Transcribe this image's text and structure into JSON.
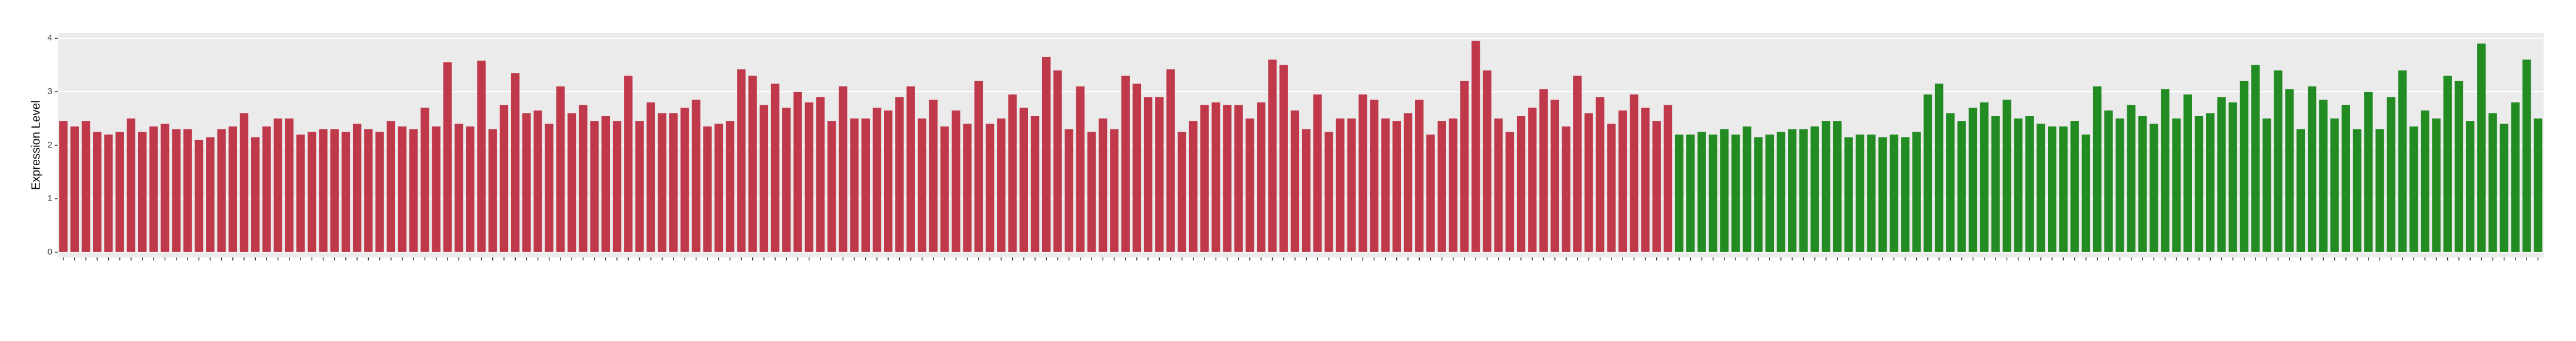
{
  "chart_data": {
    "type": "bar",
    "y_label": "Expression Level",
    "categories": [
      null,
      null,
      null,
      null,
      null,
      null,
      null,
      null,
      null,
      null,
      null,
      null,
      null,
      null,
      null,
      null,
      null,
      null,
      null,
      null,
      null,
      null,
      null,
      null,
      null,
      null,
      null,
      null,
      null,
      null,
      null,
      null,
      null,
      null,
      null,
      null,
      null,
      null,
      null,
      null,
      null,
      null,
      null,
      null,
      null,
      null,
      null,
      null,
      null,
      null,
      null,
      null,
      null,
      null,
      null,
      null,
      null,
      null,
      null,
      null,
      null,
      null,
      null,
      null,
      null,
      null,
      null,
      null,
      null,
      null,
      null,
      null,
      null,
      null,
      null,
      null,
      null,
      null,
      null,
      null,
      null,
      null,
      null,
      null,
      null,
      null,
      null,
      null,
      null,
      null,
      null,
      null,
      null,
      null,
      null,
      null,
      null,
      null,
      null,
      null,
      null,
      null,
      null,
      null,
      null,
      null,
      null,
      null,
      null,
      null,
      null,
      null,
      null,
      null,
      null,
      null,
      null,
      null,
      null,
      null,
      null,
      null,
      null,
      null,
      null,
      null,
      null,
      null,
      null,
      null,
      null,
      null,
      null,
      null,
      null,
      null,
      null,
      null,
      null,
      null,
      null,
      null,
      null,
      null,
      null,
      null,
      null,
      null,
      null,
      null,
      null,
      null,
      null,
      null,
      null,
      null,
      null,
      null,
      null,
      null,
      null,
      null,
      null,
      null,
      null,
      null,
      null,
      null,
      null,
      null,
      null,
      null,
      null,
      null,
      null,
      null,
      null,
      null,
      null,
      null,
      null,
      null,
      null,
      null,
      null,
      null,
      null,
      null,
      null,
      null,
      null,
      null,
      null,
      null,
      null,
      null,
      null,
      null,
      null,
      null,
      null,
      null,
      null,
      null,
      null,
      null,
      null,
      null,
      null,
      null,
      null,
      null,
      null,
      null,
      null,
      null,
      null,
      null,
      null,
      null
    ],
    "series": [
      {
        "color": "#c0394b",
        "values": [
          2.45,
          2.35,
          2.45,
          2.25,
          2.2,
          2.25,
          2.5,
          2.25,
          2.35,
          2.4,
          2.3,
          2.3,
          2.1,
          2.15,
          2.3,
          2.35,
          2.6,
          2.15,
          2.35,
          2.5,
          2.5,
          2.2,
          2.25,
          2.3,
          2.3,
          2.25,
          2.4,
          2.3,
          2.25,
          2.45,
          2.35,
          2.3,
          2.7,
          2.35,
          3.55,
          2.4,
          2.35,
          3.58,
          2.3,
          2.75,
          3.35,
          2.6,
          2.65,
          2.4,
          3.1,
          2.6,
          2.75,
          2.45,
          2.55,
          2.45,
          3.3,
          2.45,
          2.8,
          2.6,
          2.6,
          2.7,
          2.85,
          2.35,
          2.4,
          2.45,
          3.42,
          3.3,
          2.75,
          3.15,
          2.7,
          3.0,
          2.8,
          2.9,
          2.45,
          3.1,
          2.5,
          2.5,
          2.7,
          2.65,
          2.9,
          3.1,
          2.5,
          2.85,
          2.35,
          2.65,
          2.4,
          3.2,
          2.4,
          2.5,
          2.95,
          2.7,
          2.55,
          3.65,
          3.4,
          2.3,
          3.1,
          2.25,
          2.5,
          2.3,
          3.3,
          3.15,
          2.9,
          2.9,
          3.42,
          2.25,
          2.45,
          2.75,
          2.8,
          2.75,
          2.75,
          2.5,
          2.8,
          3.6,
          3.5,
          2.65,
          2.3,
          2.95,
          2.25,
          2.5,
          2.5,
          2.95,
          2.85,
          2.5,
          2.45,
          2.6,
          2.85,
          2.2,
          2.45,
          2.5,
          3.2,
          3.95,
          3.4,
          2.5,
          2.25,
          2.55,
          2.7,
          3.05,
          2.85,
          2.35,
          3.3,
          2.6,
          2.9,
          2.4,
          2.65,
          2.95,
          2.7,
          2.45,
          2.75,
          null,
          null,
          null,
          null,
          null,
          null,
          null,
          null,
          null,
          null,
          null,
          null,
          null,
          null,
          null,
          null,
          null,
          null,
          null,
          null,
          null,
          null,
          null,
          null,
          null,
          null,
          null,
          null,
          null,
          null,
          null,
          null,
          null,
          null,
          null,
          null,
          null,
          null,
          null,
          null,
          null,
          null,
          null,
          null,
          null,
          null,
          null,
          null,
          null,
          null,
          null,
          null,
          null,
          null,
          null,
          null,
          null,
          null,
          null,
          null,
          null,
          null,
          null,
          null,
          null,
          null,
          null,
          null,
          null,
          null,
          null,
          null,
          null,
          null,
          null,
          null,
          null
        ]
      },
      {
        "color": "#228b22",
        "values": [
          null,
          null,
          null,
          null,
          null,
          null,
          null,
          null,
          null,
          null,
          null,
          null,
          null,
          null,
          null,
          null,
          null,
          null,
          null,
          null,
          null,
          null,
          null,
          null,
          null,
          null,
          null,
          null,
          null,
          null,
          null,
          null,
          null,
          null,
          null,
          null,
          null,
          null,
          null,
          null,
          null,
          null,
          null,
          null,
          null,
          null,
          null,
          null,
          null,
          null,
          null,
          null,
          null,
          null,
          null,
          null,
          null,
          null,
          null,
          null,
          null,
          null,
          null,
          null,
          null,
          null,
          null,
          null,
          null,
          null,
          null,
          null,
          null,
          null,
          null,
          null,
          null,
          null,
          null,
          null,
          null,
          null,
          null,
          null,
          null,
          null,
          null,
          null,
          null,
          null,
          null,
          null,
          null,
          null,
          null,
          null,
          null,
          null,
          null,
          null,
          null,
          null,
          null,
          null,
          null,
          null,
          null,
          null,
          null,
          null,
          null,
          null,
          null,
          null,
          null,
          null,
          null,
          null,
          null,
          null,
          null,
          null,
          null,
          null,
          null,
          null,
          null,
          null,
          null,
          null,
          null,
          null,
          null,
          null,
          null,
          null,
          null,
          null,
          null,
          null,
          null,
          null,
          null,
          2.2,
          2.2,
          2.25,
          2.2,
          2.3,
          2.2,
          2.35,
          2.15,
          2.2,
          2.25,
          2.3,
          2.3,
          2.35,
          2.45,
          2.45,
          2.15,
          2.2,
          2.2,
          2.15,
          2.2,
          2.15,
          2.25,
          2.95,
          3.15,
          2.6,
          2.45,
          2.7,
          2.8,
          2.55,
          2.85,
          2.5,
          2.55,
          2.4,
          2.35,
          2.35,
          2.45,
          2.2,
          3.1,
          2.65,
          2.5,
          2.75,
          2.55,
          2.4,
          3.05,
          2.5,
          2.95,
          2.55,
          2.6,
          2.9,
          2.8,
          3.2,
          3.5,
          2.5,
          3.4,
          3.05,
          2.3,
          3.1,
          2.85,
          2.5,
          2.75,
          2.3,
          3.0,
          2.3,
          2.9,
          3.4,
          2.35,
          2.65,
          2.5,
          3.3,
          3.2,
          2.45,
          3.9,
          2.6,
          2.4,
          2.8,
          3.6,
          2.5
        ]
      }
    ],
    "ylim": [
      -0.1,
      4.1
    ],
    "yticks": [
      0,
      1,
      2,
      3,
      4
    ],
    "grid": true
  }
}
